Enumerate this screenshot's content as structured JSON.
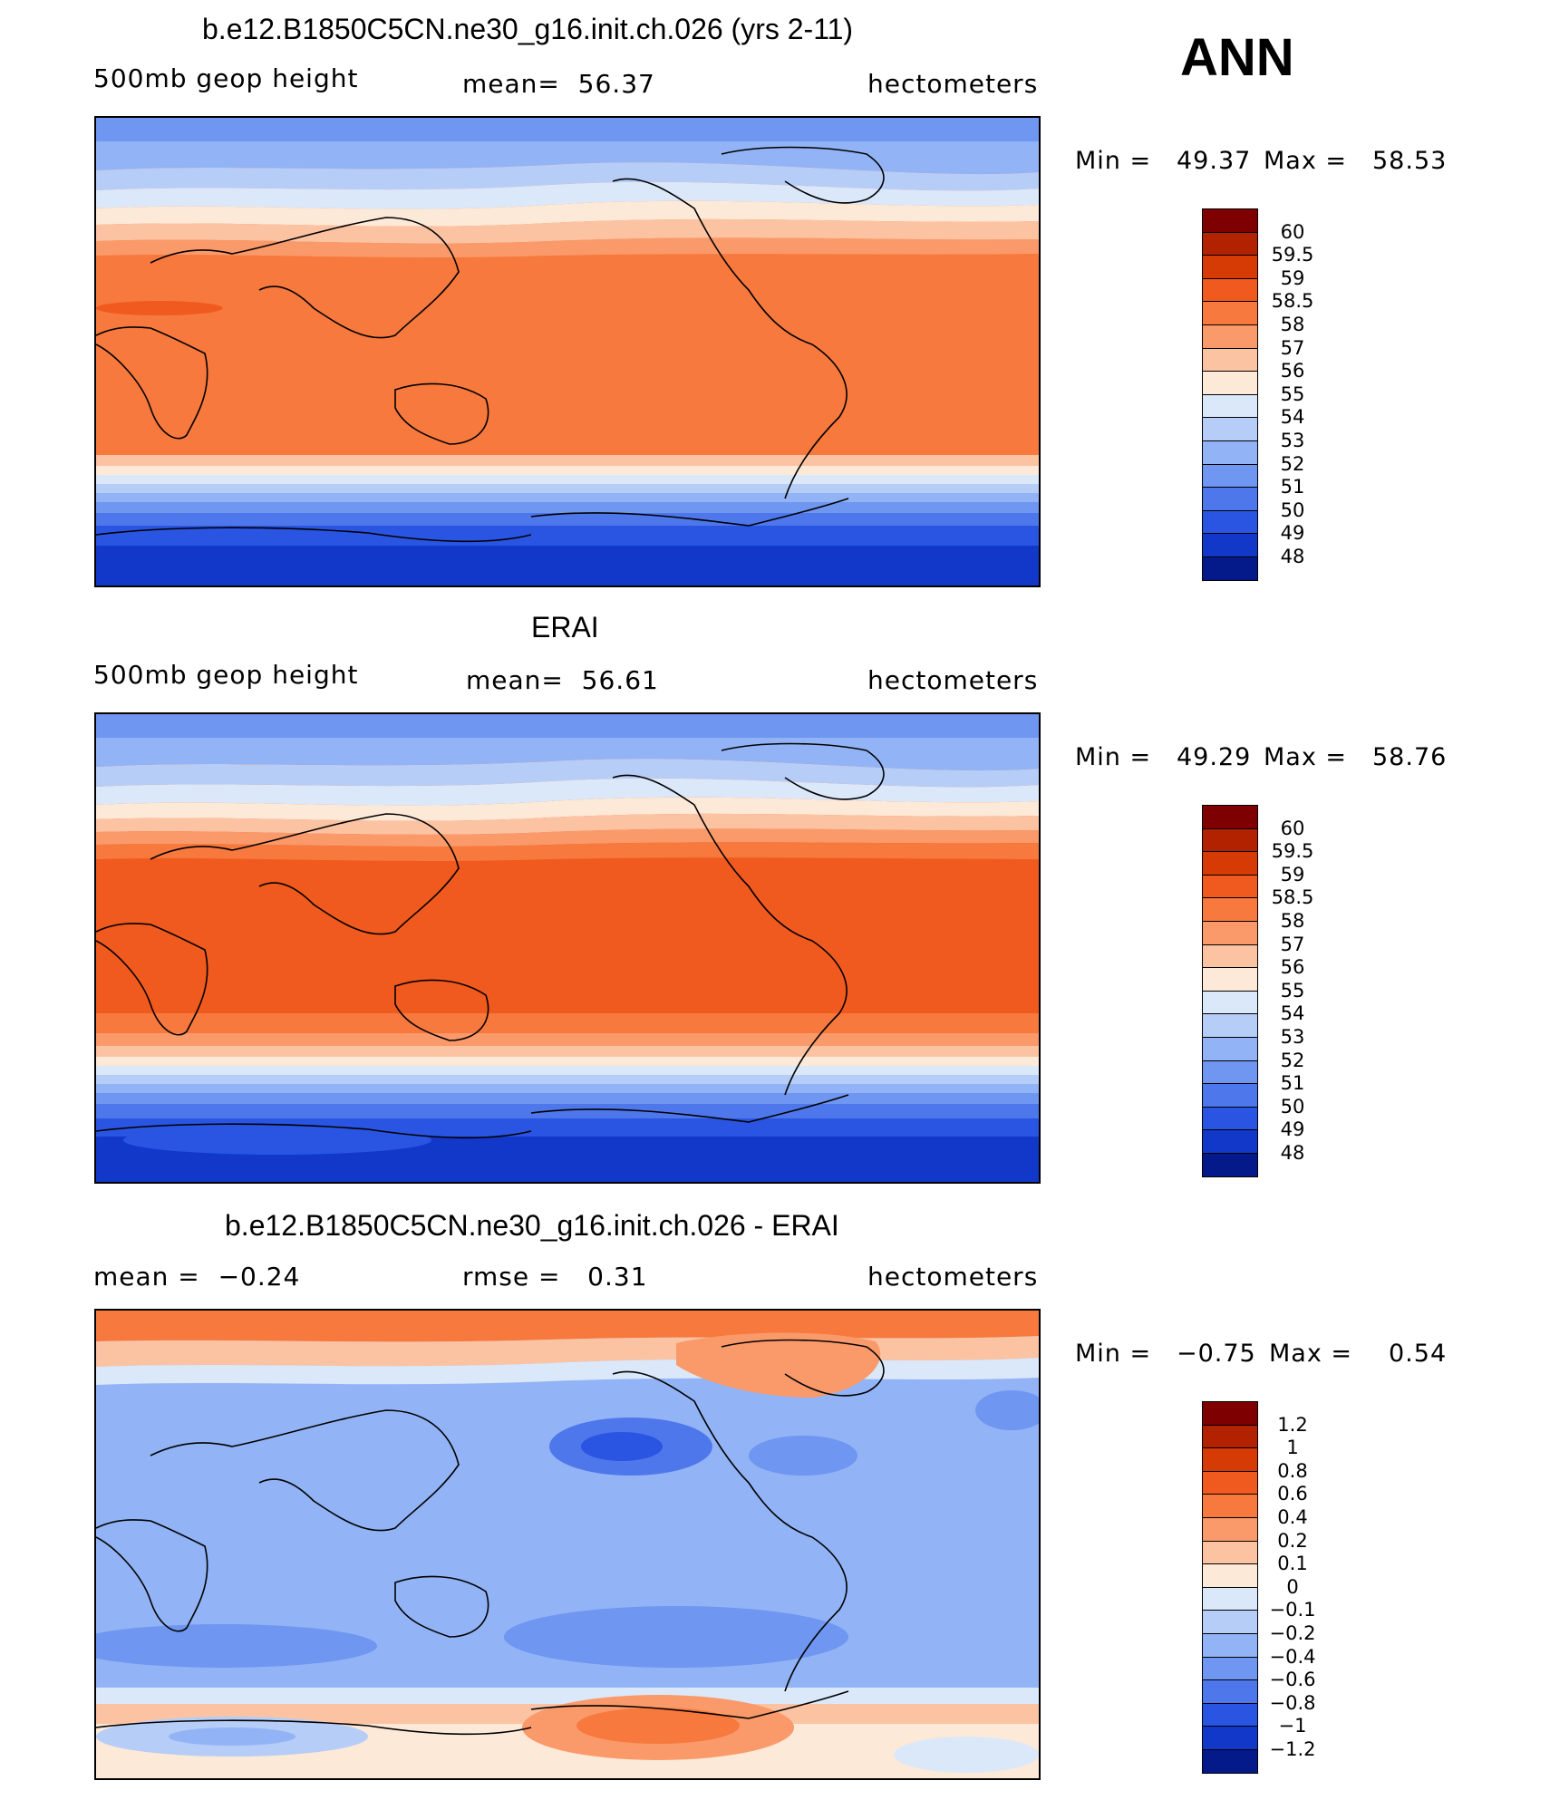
{
  "season": "ANN",
  "panels": [
    {
      "title": "b.e12.B1850C5CN.ne30_g16.init.ch.026 (yrs 2-11)",
      "left_label": "500mb geop height",
      "center_label": "mean=  56.37",
      "right_label": "hectometers",
      "min_label": "Min =",
      "min_value": "49.37",
      "max_label": "Max =",
      "max_value": "58.53",
      "colorbar": {
        "labels": [
          "60",
          "59.5",
          "59",
          "58.5",
          "58",
          "57",
          "56",
          "55",
          "54",
          "53",
          "52",
          "51",
          "50",
          "49",
          "48"
        ],
        "colors": [
          "#7f0000",
          "#b22100",
          "#d63a05",
          "#f05a1e",
          "#f7793e",
          "#fa9a6a",
          "#fcc3a3",
          "#fde9d8",
          "#dbe8fa",
          "#b6cdf7",
          "#92b3f5",
          "#6f96f0",
          "#4e77ec",
          "#2a55e2",
          "#1238c9",
          "#041a8a"
        ]
      }
    },
    {
      "title": "ERAI",
      "left_label": "500mb geop height",
      "center_label": "mean=  56.61",
      "right_label": "hectometers",
      "min_label": "Min =",
      "min_value": "49.29",
      "max_label": "Max =",
      "max_value": "58.76",
      "colorbar": {
        "labels": [
          "60",
          "59.5",
          "59",
          "58.5",
          "58",
          "57",
          "56",
          "55",
          "54",
          "53",
          "52",
          "51",
          "50",
          "49",
          "48"
        ],
        "colors": [
          "#7f0000",
          "#b22100",
          "#d63a05",
          "#f05a1e",
          "#f7793e",
          "#fa9a6a",
          "#fcc3a3",
          "#fde9d8",
          "#dbe8fa",
          "#b6cdf7",
          "#92b3f5",
          "#6f96f0",
          "#4e77ec",
          "#2a55e2",
          "#1238c9",
          "#041a8a"
        ]
      }
    },
    {
      "title": "b.e12.B1850C5CN.ne30_g16.init.ch.026 - ERAI",
      "left_label": "mean =  −0.24",
      "center_label": "rmse =   0.31",
      "right_label": "hectometers",
      "min_label": "Min =",
      "min_value": "−0.75",
      "max_label": "Max =",
      "max_value": "0.54",
      "colorbar": {
        "labels": [
          "1.2",
          "1",
          "0.8",
          "0.6",
          "0.4",
          "0.2",
          "0.1",
          "0",
          "−0.1",
          "−0.2",
          "−0.4",
          "−0.6",
          "−0.8",
          "−1",
          "−1.2"
        ],
        "colors": [
          "#7f0000",
          "#b22100",
          "#d63a05",
          "#f05a1e",
          "#f7793e",
          "#fa9a6a",
          "#fcc3a3",
          "#fde9d8",
          "#dbe8fa",
          "#b6cdf7",
          "#92b3f5",
          "#6f96f0",
          "#4e77ec",
          "#2a55e2",
          "#1238c9",
          "#041a8a"
        ]
      }
    }
  ]
}
